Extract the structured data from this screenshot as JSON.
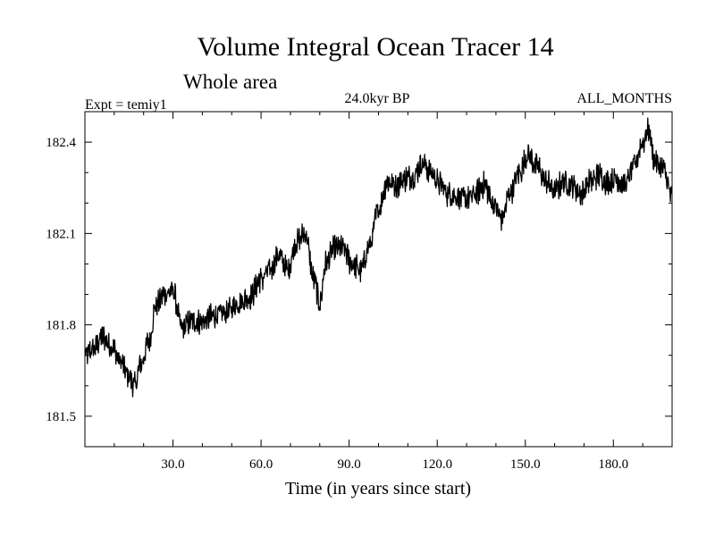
{
  "chart_data": {
    "type": "line",
    "title": "Volume Integral Ocean Tracer 14",
    "subtitle": "Whole area",
    "left_label": "Expt = temiy1",
    "center_label": "24.0kyr BP",
    "right_label": "ALL_MONTHS",
    "xlabel": "Time (in years since start)",
    "ylabel": "",
    "xlim": [
      0,
      200
    ],
    "ylim": [
      181.4,
      182.5
    ],
    "xticks": [
      "30.0",
      "60.0",
      "90.0",
      "120.0",
      "150.0",
      "180.0"
    ],
    "yticks": [
      "181.5",
      "181.8",
      "182.1",
      "182.4"
    ],
    "grid": false,
    "series": [
      {
        "color": "#000000",
        "x": [
          0,
          3,
          6,
          9,
          12,
          15,
          17,
          19,
          22,
          24,
          27,
          30,
          33,
          36,
          40,
          44,
          48,
          52,
          56,
          60,
          63,
          66,
          69,
          72,
          75,
          78,
          80,
          82,
          85,
          88,
          91,
          94,
          97,
          100,
          103,
          106,
          109,
          112,
          115,
          118,
          121,
          124,
          127,
          130,
          133,
          136,
          139,
          142,
          145,
          148,
          151,
          154,
          157,
          160,
          163,
          166,
          169,
          172,
          175,
          178,
          181,
          184,
          187,
          190,
          192,
          194,
          197,
          200
        ],
        "y": [
          181.7,
          181.72,
          181.76,
          181.73,
          181.68,
          181.63,
          181.6,
          181.67,
          181.75,
          181.86,
          181.9,
          181.91,
          181.79,
          181.81,
          181.81,
          181.83,
          181.84,
          181.87,
          181.89,
          181.95,
          181.98,
          182.03,
          181.98,
          182.07,
          182.1,
          181.95,
          181.87,
          182.0,
          182.05,
          182.05,
          182.0,
          181.98,
          182.06,
          182.18,
          182.27,
          182.26,
          182.28,
          182.29,
          182.33,
          182.3,
          182.26,
          182.23,
          182.22,
          182.21,
          182.23,
          182.26,
          182.2,
          182.15,
          182.24,
          182.3,
          182.36,
          182.32,
          182.27,
          182.24,
          182.27,
          182.26,
          182.23,
          182.27,
          182.29,
          182.27,
          182.28,
          182.26,
          182.32,
          182.4,
          182.44,
          182.34,
          182.31,
          182.22
        ]
      }
    ]
  }
}
